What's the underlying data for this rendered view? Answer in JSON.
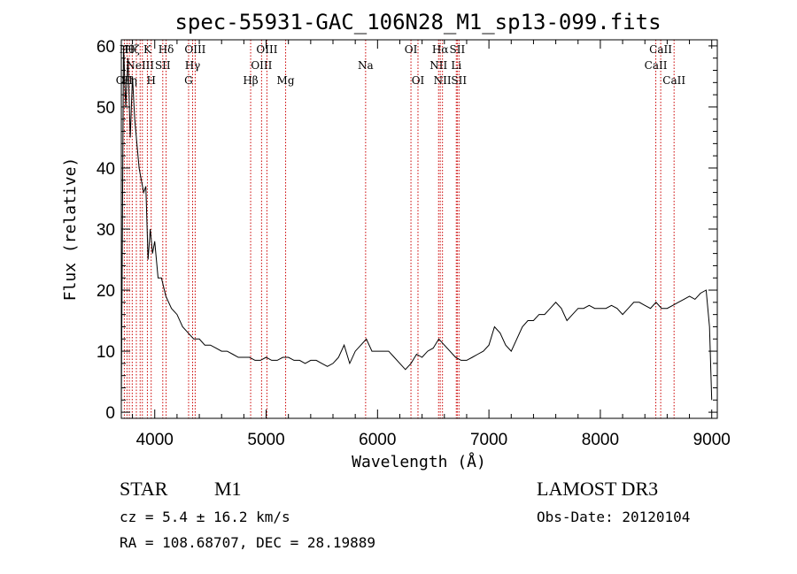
{
  "chart_data": {
    "type": "line",
    "title": "spec-55931-GAC_106N28_M1_sp13-099.fits",
    "xlabel": "Wavelength (Å)",
    "ylabel": "Flux (relative)",
    "xlim": [
      3700,
      9050
    ],
    "ylim": [
      -1,
      61
    ],
    "x_ticks": [
      4000,
      5000,
      6000,
      7000,
      8000,
      9000
    ],
    "y_ticks": [
      0,
      10,
      20,
      30,
      40,
      50,
      60
    ],
    "grid": false,
    "line_color": "#000000",
    "marker_color": "#cc0000",
    "series": [
      {
        "name": "spectrum",
        "x": [
          3700,
          3720,
          3740,
          3760,
          3780,
          3800,
          3820,
          3840,
          3860,
          3880,
          3900,
          3920,
          3940,
          3960,
          3980,
          4000,
          4030,
          4060,
          4100,
          4150,
          4200,
          4250,
          4300,
          4350,
          4400,
          4450,
          4500,
          4550,
          4600,
          4650,
          4700,
          4750,
          4800,
          4850,
          4900,
          4950,
          5000,
          5050,
          5100,
          5150,
          5200,
          5250,
          5300,
          5350,
          5400,
          5450,
          5500,
          5550,
          5600,
          5650,
          5700,
          5750,
          5800,
          5850,
          5900,
          5950,
          6000,
          6050,
          6100,
          6150,
          6200,
          6250,
          6300,
          6350,
          6400,
          6450,
          6500,
          6550,
          6600,
          6650,
          6700,
          6750,
          6800,
          6850,
          6900,
          6950,
          7000,
          7050,
          7100,
          7150,
          7200,
          7250,
          7300,
          7350,
          7400,
          7450,
          7500,
          7550,
          7600,
          7650,
          7700,
          7750,
          7800,
          7850,
          7900,
          7950,
          8000,
          8050,
          8100,
          8150,
          8200,
          8250,
          8300,
          8350,
          8400,
          8450,
          8500,
          8550,
          8600,
          8650,
          8700,
          8750,
          8800,
          8850,
          8900,
          8950,
          8980,
          9000
        ],
        "y": [
          1,
          60,
          50,
          58,
          45,
          55,
          48,
          44,
          40,
          38,
          36,
          37,
          25,
          30,
          26,
          28,
          22,
          22,
          19,
          17,
          16,
          14,
          13,
          12,
          12,
          11,
          11,
          10.5,
          10,
          10,
          9.5,
          9,
          9,
          9,
          8.5,
          8.5,
          9,
          8.5,
          8.5,
          9,
          9,
          8.5,
          8.5,
          8,
          8.5,
          8.5,
          8,
          7.5,
          8,
          9,
          11,
          8,
          10,
          11,
          12,
          10,
          10,
          10,
          10,
          9,
          8,
          7,
          8,
          9.5,
          9,
          10,
          10.5,
          12,
          11,
          10,
          9,
          8.5,
          8.5,
          9,
          9.5,
          10,
          11,
          14,
          13,
          11,
          10,
          12,
          14,
          15,
          15,
          16,
          16,
          17,
          18,
          17,
          15,
          16,
          17,
          17,
          17.5,
          17,
          17,
          17,
          17.5,
          17,
          16,
          17,
          18,
          18,
          17.5,
          17,
          18,
          17,
          17,
          17.5,
          18,
          18.5,
          19,
          18.5,
          19.5,
          20,
          14,
          2
        ]
      }
    ],
    "markers": [
      {
        "wl": 3727,
        "label": "OII",
        "row": 3
      },
      {
        "wl": 3751,
        "label": "Hθ",
        "row": 1
      },
      {
        "wl": 3772,
        "label": "Hη",
        "row": 3
      },
      {
        "wl": 3798,
        "label": "Hζ",
        "row": 1
      },
      {
        "wl": 3835,
        "label": "",
        "row": 0
      },
      {
        "wl": 3869,
        "label": "NeIII",
        "row": 2
      },
      {
        "wl": 3889,
        "label": "",
        "row": 0
      },
      {
        "wl": 3934,
        "label": "K",
        "row": 1
      },
      {
        "wl": 3968,
        "label": "H",
        "row": 3
      },
      {
        "wl": 4072,
        "label": "SII",
        "row": 2
      },
      {
        "wl": 4102,
        "label": "Hδ",
        "row": 1
      },
      {
        "wl": 4304,
        "label": "G",
        "row": 3
      },
      {
        "wl": 4340,
        "label": "Hγ",
        "row": 2
      },
      {
        "wl": 4363,
        "label": "OIII",
        "row": 1
      },
      {
        "wl": 4861,
        "label": "Hβ",
        "row": 3
      },
      {
        "wl": 4959,
        "label": "OIII",
        "row": 2
      },
      {
        "wl": 5007,
        "label": "OIII",
        "row": 1
      },
      {
        "wl": 5175,
        "label": "Mg",
        "row": 3
      },
      {
        "wl": 5893,
        "label": "Na",
        "row": 2
      },
      {
        "wl": 6300,
        "label": "OI",
        "row": 1
      },
      {
        "wl": 6363,
        "label": "OI",
        "row": 3
      },
      {
        "wl": 6548,
        "label": "NII",
        "row": 2
      },
      {
        "wl": 6563,
        "label": "Hα",
        "row": 1
      },
      {
        "wl": 6583,
        "label": "NII",
        "row": 3
      },
      {
        "wl": 6707,
        "label": "Li",
        "row": 2
      },
      {
        "wl": 6716,
        "label": "SII",
        "row": 1
      },
      {
        "wl": 6731,
        "label": "SII",
        "row": 3
      },
      {
        "wl": 8498,
        "label": "CaII",
        "row": 2
      },
      {
        "wl": 8542,
        "label": "CaII",
        "row": 1
      },
      {
        "wl": 8662,
        "label": "CaII",
        "row": 3
      }
    ]
  },
  "info": {
    "object_class": "STAR",
    "subclass": "M1",
    "survey": "LAMOST DR3",
    "cz": "cz = 5.4 ± 16.2 km/s",
    "obs_date": "Obs-Date: 20120104",
    "coords": "RA = 108.68707, DEC =  28.19889"
  }
}
